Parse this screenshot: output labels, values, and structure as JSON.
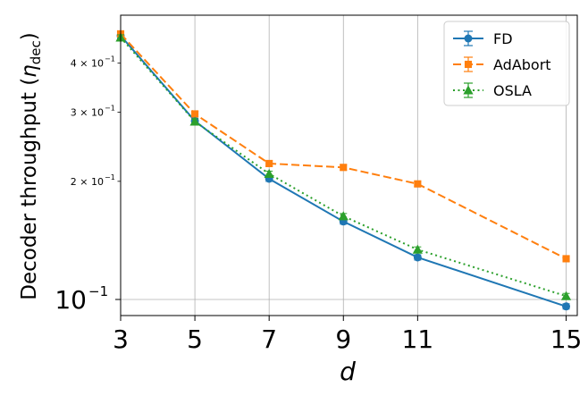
{
  "chart_data": {
    "type": "line",
    "xlabel": "d",
    "ylabel_main": "Decoder throughput (",
    "ylabel_eta": "η",
    "ylabel_sub": "dec",
    "ylabel_close": ")",
    "yscale": "log",
    "xlim": [
      3,
      15.3
    ],
    "ylim": [
      0.091,
      0.53
    ],
    "grid": true,
    "legend_position": "top-right",
    "x_ticks": [
      3,
      5,
      7,
      9,
      11,
      15
    ],
    "x_tick_labels": [
      "3",
      "5",
      "7",
      "9",
      "11",
      "15"
    ],
    "y_ticks": [
      {
        "value": 0.4,
        "base": "4 × 10",
        "exp": "−1",
        "major": false
      },
      {
        "value": 0.3,
        "base": "3 × 10",
        "exp": "−1",
        "major": false
      },
      {
        "value": 0.2,
        "base": "2 × 10",
        "exp": "−1",
        "major": false
      },
      {
        "value": 0.1,
        "base": "10",
        "exp": "−1",
        "major": true
      }
    ],
    "series": [
      {
        "name": "FD",
        "color": "#1f77b4",
        "dash": "solid",
        "marker": "circle",
        "x": [
          3,
          5,
          7,
          9,
          11,
          15
        ],
        "y": [
          0.47,
          0.285,
          0.203,
          0.158,
          0.128,
          0.096
        ]
      },
      {
        "name": "AdAbort",
        "color": "#ff7f0e",
        "dash": "dashed",
        "marker": "square",
        "x": [
          3,
          5,
          7,
          9,
          11,
          15
        ],
        "y": [
          0.475,
          0.297,
          0.222,
          0.217,
          0.197,
          0.127
        ]
      },
      {
        "name": "OSLA",
        "color": "#2ca02c",
        "dash": "dotted",
        "marker": "triangle",
        "x": [
          3,
          5,
          7,
          9,
          11,
          15
        ],
        "y": [
          0.465,
          0.284,
          0.209,
          0.163,
          0.134,
          0.102
        ]
      }
    ]
  }
}
